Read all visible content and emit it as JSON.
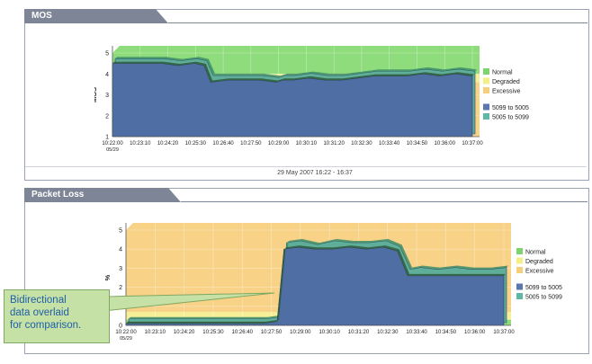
{
  "colors": {
    "normal": "#8fdc7c",
    "degraded": "#f7ef98",
    "excessive": "#f8d287",
    "series_a": "#4f6fa4",
    "series_b": "#5fae9a",
    "tab": "#7d8596"
  },
  "legend": [
    {
      "label": "Normal",
      "color": "#7dd36e"
    },
    {
      "label": "Degraded",
      "color": "#f3ee86"
    },
    {
      "label": "Excessive",
      "color": "#f6cf7d"
    },
    {
      "label": "5099 to 5005",
      "color": "#5c77b0"
    },
    {
      "label": "5005 to 5099",
      "color": "#5fb8a6"
    }
  ],
  "callout": {
    "line1": "Bidirectional",
    "line2": "data overlaid",
    "line3": "for comparison."
  },
  "chart_data": [
    {
      "type": "area",
      "title": "MOS",
      "ylabel": "MOS",
      "xlabel": "",
      "ylim": [
        1,
        5
      ],
      "yticks": [
        1,
        2,
        3,
        4,
        5
      ],
      "xlim": [
        0,
        110
      ],
      "xticks": [
        "10:22:00",
        "10:23:10",
        "10:24:20",
        "10:25:30",
        "10:26:40",
        "10:27:50",
        "10:29:00",
        "10:30:10",
        "10:31:20",
        "10:32:30",
        "10:33:40",
        "10:34:50",
        "10:36:00",
        "10:37:00"
      ],
      "first_tick_sub": "05/29",
      "bands": [
        {
          "name": "Excessive",
          "from": 1,
          "to": 3.6
        },
        {
          "name": "Degraded",
          "from": 3.6,
          "to": 4.0
        },
        {
          "name": "Normal",
          "from": 4.0,
          "to": 5
        }
      ],
      "x": [
        0,
        5,
        10,
        15,
        20,
        25,
        28,
        30,
        35,
        40,
        45,
        50,
        52,
        55,
        60,
        65,
        70,
        75,
        80,
        85,
        90,
        95,
        100,
        105,
        110
      ],
      "series": [
        {
          "name": "5099 to 5005",
          "values": [
            4.5,
            4.5,
            4.5,
            4.5,
            4.4,
            4.5,
            4.4,
            3.6,
            3.7,
            3.7,
            3.7,
            3.6,
            3.7,
            3.7,
            3.8,
            3.7,
            3.7,
            3.8,
            3.9,
            3.9,
            3.9,
            4.0,
            3.9,
            4.0,
            3.9
          ]
        },
        {
          "name": "5005 to 5099",
          "values": [
            4.6,
            4.6,
            4.6,
            4.6,
            4.5,
            4.6,
            4.5,
            3.8,
            3.8,
            3.8,
            3.8,
            3.7,
            3.8,
            3.8,
            3.9,
            3.8,
            3.8,
            3.9,
            4.0,
            4.0,
            4.0,
            4.1,
            4.0,
            4.1,
            4.0
          ]
        }
      ]
    },
    {
      "type": "area",
      "title": "Packet Loss",
      "ylabel": "%",
      "xlabel": "",
      "ylim": [
        0,
        5
      ],
      "yticks": [
        0,
        1,
        2,
        3,
        4,
        5
      ],
      "xlim": [
        0,
        110
      ],
      "xticks": [
        "10:22:00",
        "10:23:10",
        "10:24:20",
        "10:25:30",
        "10:26:40",
        "10:27:50",
        "10:29:00",
        "10:30:10",
        "10:31:20",
        "10:32:30",
        "10:33:40",
        "10:34:50",
        "10:36:00",
        "10:37:00"
      ],
      "first_tick_sub": "05/29",
      "bands": [
        {
          "name": "Normal",
          "from": 0,
          "to": 0.3
        },
        {
          "name": "Degraded",
          "from": 0.3,
          "to": 0.7
        },
        {
          "name": "Excessive",
          "from": 0.7,
          "to": 5
        }
      ],
      "x": [
        0,
        10,
        20,
        30,
        35,
        40,
        44,
        46,
        50,
        55,
        60,
        65,
        70,
        75,
        79,
        82,
        85,
        90,
        95,
        100,
        105,
        110
      ],
      "series": [
        {
          "name": "5099 to 5005",
          "values": [
            0.1,
            0.1,
            0.1,
            0.1,
            0.1,
            0.1,
            0.2,
            4.0,
            4.1,
            4.0,
            4.0,
            4.1,
            4.0,
            4.1,
            3.9,
            2.6,
            2.6,
            2.6,
            2.6,
            2.6,
            2.6,
            2.6
          ]
        },
        {
          "name": "5005 to 5099",
          "values": [
            0.2,
            0.2,
            0.2,
            0.2,
            0.2,
            0.2,
            0.3,
            4.2,
            4.3,
            4.1,
            4.3,
            4.2,
            4.2,
            4.3,
            4.0,
            2.8,
            2.9,
            2.8,
            2.9,
            2.8,
            2.8,
            2.9
          ]
        }
      ]
    }
  ],
  "mos_panel": {
    "date_range": "29 May 2007 16:22 - 16:37"
  }
}
